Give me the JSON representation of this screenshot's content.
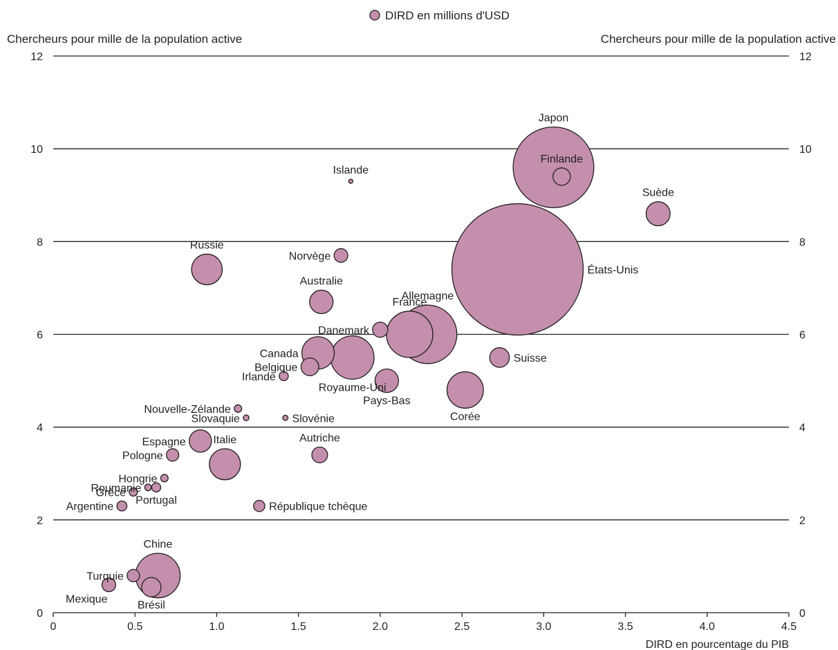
{
  "chart_data": {
    "type": "scatter",
    "legend": {
      "label": "DIRD en millions d'USD",
      "placement": "top-center"
    },
    "ylabel_left": "Chercheurs pour mille de la population active",
    "ylabel_right": "Chercheurs pour mille de la population active",
    "xlabel": "DIRD en pourcentage du PIB",
    "xlim": [
      0,
      4.5
    ],
    "ylim": [
      0,
      12
    ],
    "xticks": [
      "0",
      "0.5",
      "1.0",
      "1.5",
      "2.0",
      "2.5",
      "3.0",
      "3.5",
      "4.0",
      "4.5"
    ],
    "yticks": [
      "0",
      "2",
      "4",
      "6",
      "8",
      "10",
      "12"
    ],
    "grid": "horizontal",
    "colors": {
      "bubble_fill": "#c48fac",
      "bubble_stroke": "#231f20",
      "grid": "#231f20"
    },
    "points": [
      {
        "label": "États-Unis",
        "x": 2.84,
        "y": 7.4,
        "size": 312500,
        "anchor": "right"
      },
      {
        "label": "Japon",
        "x": 3.06,
        "y": 9.6,
        "size": 118000,
        "anchor": "above"
      },
      {
        "label": "Finlande",
        "x": 3.11,
        "y": 9.4,
        "size": 5500,
        "anchor": "above"
      },
      {
        "label": "Suède",
        "x": 3.7,
        "y": 8.6,
        "size": 10500,
        "anchor": "above"
      },
      {
        "label": "Islande",
        "x": 1.82,
        "y": 9.3,
        "size": 300,
        "anchor": "above"
      },
      {
        "label": "Norvège",
        "x": 1.76,
        "y": 7.7,
        "size": 3400,
        "anchor": "left"
      },
      {
        "label": "Russie",
        "x": 0.94,
        "y": 7.4,
        "size": 17000,
        "anchor": "above"
      },
      {
        "label": "Australie",
        "x": 1.64,
        "y": 6.7,
        "size": 10000,
        "anchor": "above"
      },
      {
        "label": "Allemagne",
        "x": 2.29,
        "y": 6.0,
        "size": 62000,
        "anchor": "above"
      },
      {
        "label": "France",
        "x": 2.18,
        "y": 6.0,
        "size": 39000,
        "anchor": "above"
      },
      {
        "label": "Danemark",
        "x": 2.0,
        "y": 6.1,
        "size": 4200,
        "anchor": "left"
      },
      {
        "label": "Canada",
        "x": 1.62,
        "y": 5.6,
        "size": 19000,
        "anchor": "left"
      },
      {
        "label": "Royaume-Uni",
        "x": 1.83,
        "y": 5.5,
        "size": 34000,
        "anchor": "below"
      },
      {
        "label": "Belgique",
        "x": 1.57,
        "y": 5.3,
        "size": 5700,
        "anchor": "left"
      },
      {
        "label": "Suisse",
        "x": 2.73,
        "y": 5.5,
        "size": 7000,
        "anchor": "right"
      },
      {
        "label": "Pays-Bas",
        "x": 2.04,
        "y": 5.0,
        "size": 10000,
        "anchor": "below"
      },
      {
        "label": "Irlande",
        "x": 1.41,
        "y": 5.1,
        "size": 1500,
        "anchor": "left"
      },
      {
        "label": "Corée",
        "x": 2.52,
        "y": 4.8,
        "size": 24000,
        "anchor": "below"
      },
      {
        "label": "Nouvelle-Zélande",
        "x": 1.13,
        "y": 4.4,
        "size": 1000,
        "anchor": "left"
      },
      {
        "label": "Slovaquie",
        "x": 1.18,
        "y": 4.2,
        "size": 600,
        "anchor": "left"
      },
      {
        "label": "Slovénie",
        "x": 1.42,
        "y": 4.2,
        "size": 500,
        "anchor": "right"
      },
      {
        "label": "Espagne",
        "x": 0.9,
        "y": 3.7,
        "size": 9000,
        "anchor": "left"
      },
      {
        "label": "Italie",
        "x": 1.05,
        "y": 3.2,
        "size": 17500,
        "anchor": "above"
      },
      {
        "label": "Autriche",
        "x": 1.63,
        "y": 3.4,
        "size": 4500,
        "anchor": "above"
      },
      {
        "label": "Pologne",
        "x": 0.73,
        "y": 3.4,
        "size": 2800,
        "anchor": "left"
      },
      {
        "label": "Hongrie",
        "x": 0.68,
        "y": 2.9,
        "size": 1000,
        "anchor": "left"
      },
      {
        "label": "Roumanie",
        "x": 0.58,
        "y": 2.7,
        "size": 800,
        "anchor": "left"
      },
      {
        "label": "Portugal",
        "x": 0.63,
        "y": 2.7,
        "size": 1500,
        "anchor": "below"
      },
      {
        "label": "Grèce",
        "x": 0.49,
        "y": 2.6,
        "size": 1200,
        "anchor": "left"
      },
      {
        "label": "Argentine",
        "x": 0.42,
        "y": 2.3,
        "size": 1800,
        "anchor": "left"
      },
      {
        "label": "République tchèque",
        "x": 1.26,
        "y": 2.3,
        "size": 2300,
        "anchor": "right"
      },
      {
        "label": "Chine",
        "x": 0.64,
        "y": 0.8,
        "size": 36000,
        "anchor": "above"
      },
      {
        "label": "Turquie",
        "x": 0.49,
        "y": 0.8,
        "size": 2800,
        "anchor": "left"
      },
      {
        "label": "Mexique",
        "x": 0.34,
        "y": 0.6,
        "size": 3400,
        "anchor": "belowleft"
      },
      {
        "label": "Brésil",
        "x": 0.6,
        "y": 0.55,
        "size": 6800,
        "anchor": "below"
      }
    ]
  }
}
